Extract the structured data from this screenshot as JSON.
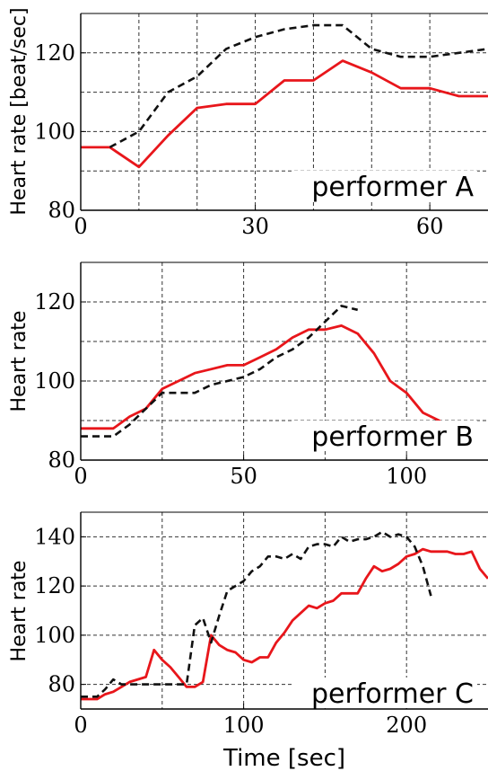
{
  "colors": {
    "series_red": "#e8161b",
    "series_dashed": "#111111",
    "grid": "#333333"
  },
  "xlabel": "Time [sec]",
  "chart_data": [
    {
      "type": "line",
      "annotation": "performer A",
      "ylabel": "Heart rate [beat/sec]",
      "xlim": [
        0,
        70
      ],
      "ylim": [
        80,
        130
      ],
      "xticks": [
        0,
        30,
        60
      ],
      "yticks": [
        80,
        100,
        120
      ],
      "xgrid": [
        10,
        20,
        30,
        40,
        50,
        60
      ],
      "ygrid": [
        90,
        100,
        110,
        120
      ],
      "grid": true,
      "series": [
        {
          "style": "solid",
          "points": [
            [
              0,
              96
            ],
            [
              5,
              96
            ],
            [
              10,
              91
            ],
            [
              15,
              99
            ],
            [
              20,
              106
            ],
            [
              25,
              107
            ],
            [
              30,
              107
            ],
            [
              35,
              113
            ],
            [
              40,
              113
            ],
            [
              45,
              118
            ],
            [
              50,
              115
            ],
            [
              55,
              111
            ],
            [
              60,
              111
            ],
            [
              65,
              109
            ],
            [
              70,
              109
            ]
          ]
        },
        {
          "style": "dashed",
          "points": [
            [
              5,
              96
            ],
            [
              10,
              100
            ],
            [
              15,
              110
            ],
            [
              20,
              114
            ],
            [
              25,
              121
            ],
            [
              30,
              124
            ],
            [
              35,
              126
            ],
            [
              40,
              127
            ],
            [
              45,
              127
            ],
            [
              50,
              121
            ],
            [
              55,
              119
            ],
            [
              60,
              119
            ],
            [
              65,
              120
            ],
            [
              70,
              121
            ]
          ]
        }
      ]
    },
    {
      "type": "line",
      "annotation": "performer B",
      "ylabel": "Heart rate",
      "xlim": [
        0,
        125
      ],
      "ylim": [
        80,
        130
      ],
      "xticks": [
        0,
        50,
        100
      ],
      "yticks": [
        80,
        100,
        120
      ],
      "xgrid": [
        25,
        50,
        75,
        100
      ],
      "ygrid": [
        90,
        100,
        110,
        120
      ],
      "grid": true,
      "series": [
        {
          "style": "solid",
          "points": [
            [
              0,
              88
            ],
            [
              10,
              88
            ],
            [
              15,
              91
            ],
            [
              20,
              93
            ],
            [
              25,
              98
            ],
            [
              30,
              100
            ],
            [
              35,
              102
            ],
            [
              40,
              103
            ],
            [
              45,
              104
            ],
            [
              50,
              104
            ],
            [
              55,
              106
            ],
            [
              60,
              108
            ],
            [
              65,
              111
            ],
            [
              70,
              113
            ],
            [
              75,
              113
            ],
            [
              80,
              114
            ],
            [
              85,
              112
            ],
            [
              90,
              107
            ],
            [
              95,
              100
            ],
            [
              100,
              97
            ],
            [
              105,
              92
            ],
            [
              110,
              90
            ],
            [
              113,
              88
            ]
          ]
        },
        {
          "style": "dashed",
          "points": [
            [
              0,
              86
            ],
            [
              10,
              86
            ],
            [
              15,
              89
            ],
            [
              20,
              93
            ],
            [
              25,
              97
            ],
            [
              30,
              97
            ],
            [
              35,
              97
            ],
            [
              40,
              99
            ],
            [
              45,
              100
            ],
            [
              50,
              101
            ],
            [
              55,
              103
            ],
            [
              60,
              106
            ],
            [
              65,
              108
            ],
            [
              70,
              111
            ],
            [
              75,
              115
            ],
            [
              80,
              119
            ],
            [
              85,
              118
            ]
          ]
        }
      ]
    },
    {
      "type": "line",
      "annotation": "performer C",
      "ylabel": "Heart rate",
      "xlim": [
        0,
        250
      ],
      "ylim": [
        70,
        150
      ],
      "xticks": [
        0,
        100,
        200
      ],
      "yticks": [
        80,
        100,
        120,
        140
      ],
      "xgrid": [
        50,
        100,
        150,
        200
      ],
      "ygrid": [
        80,
        100,
        120,
        140
      ],
      "grid": true,
      "series": [
        {
          "style": "solid",
          "points": [
            [
              0,
              74
            ],
            [
              10,
              74
            ],
            [
              15,
              76
            ],
            [
              20,
              77
            ],
            [
              25,
              79
            ],
            [
              30,
              81
            ],
            [
              35,
              82
            ],
            [
              40,
              83
            ],
            [
              45,
              94
            ],
            [
              50,
              90
            ],
            [
              55,
              87
            ],
            [
              60,
              83
            ],
            [
              65,
              79
            ],
            [
              70,
              79
            ],
            [
              75,
              81
            ],
            [
              80,
              100
            ],
            [
              85,
              96
            ],
            [
              90,
              94
            ],
            [
              95,
              93
            ],
            [
              100,
              90
            ],
            [
              105,
              89
            ],
            [
              110,
              91
            ],
            [
              115,
              91
            ],
            [
              120,
              97
            ],
            [
              125,
              101
            ],
            [
              130,
              106
            ],
            [
              135,
              109
            ],
            [
              140,
              112
            ],
            [
              145,
              111
            ],
            [
              150,
              113
            ],
            [
              155,
              114
            ],
            [
              160,
              117
            ],
            [
              165,
              117
            ],
            [
              170,
              117
            ],
            [
              175,
              123
            ],
            [
              180,
              128
            ],
            [
              185,
              126
            ],
            [
              190,
              127
            ],
            [
              195,
              129
            ],
            [
              200,
              132
            ],
            [
              205,
              133
            ],
            [
              210,
              135
            ],
            [
              215,
              134
            ],
            [
              220,
              134
            ],
            [
              225,
              134
            ],
            [
              230,
              133
            ],
            [
              235,
              133
            ],
            [
              240,
              134
            ],
            [
              245,
              127
            ],
            [
              250,
              123
            ]
          ]
        },
        {
          "style": "dashed",
          "points": [
            [
              0,
              75
            ],
            [
              10,
              75
            ],
            [
              15,
              78
            ],
            [
              20,
              82
            ],
            [
              25,
              80
            ],
            [
              30,
              80
            ],
            [
              35,
              80
            ],
            [
              40,
              80
            ],
            [
              45,
              80
            ],
            [
              50,
              80
            ],
            [
              55,
              80
            ],
            [
              60,
              80
            ],
            [
              65,
              80
            ],
            [
              70,
              104
            ],
            [
              75,
              107
            ],
            [
              80,
              97
            ],
            [
              85,
              108
            ],
            [
              90,
              118
            ],
            [
              95,
              120
            ],
            [
              100,
              122
            ],
            [
              105,
              126
            ],
            [
              110,
              128
            ],
            [
              115,
              132
            ],
            [
              120,
              132
            ],
            [
              125,
              131
            ],
            [
              130,
              133
            ],
            [
              135,
              131
            ],
            [
              140,
              136
            ],
            [
              145,
              137
            ],
            [
              150,
              137
            ],
            [
              155,
              136
            ],
            [
              160,
              140
            ],
            [
              165,
              138
            ],
            [
              170,
              139
            ],
            [
              175,
              139
            ],
            [
              180,
              140
            ],
            [
              185,
              142
            ],
            [
              190,
              140
            ],
            [
              195,
              141
            ],
            [
              200,
              140
            ],
            [
              205,
              136
            ],
            [
              210,
              128
            ],
            [
              215,
              116
            ]
          ]
        }
      ]
    }
  ]
}
